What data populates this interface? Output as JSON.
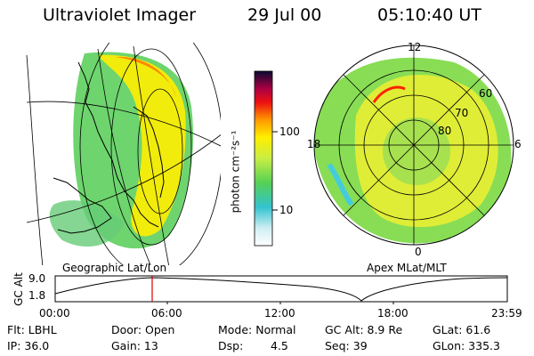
{
  "header": {
    "instrument": "Ultraviolet Imager",
    "date": "29 Jul 00",
    "time": "05:10:40 UT"
  },
  "colorbar": {
    "unit_label": "photon cm⁻²s⁻¹",
    "ticks": [
      "100",
      "10"
    ]
  },
  "left_panel": {
    "caption": "Geographic Lat/Lon"
  },
  "right_panel": {
    "caption": "Apex MLat/MLT",
    "mlt_labels": [
      "12",
      "18",
      "6",
      "0"
    ],
    "lat_labels": [
      "60",
      "70",
      "80"
    ]
  },
  "altitude_plot": {
    "ylabel": "GC Alt",
    "yticks": [
      "9.0",
      "1.8"
    ],
    "xticks": [
      "00:00",
      "06:00",
      "12:00",
      "18:00",
      "23:59"
    ],
    "marker_time": "05:10"
  },
  "info": {
    "flt": "Flt: LBHL",
    "ip": "IP: 36.0",
    "door": "Door: Open",
    "gain": "Gain: 13",
    "mode": "Mode: Normal",
    "dsp_label": "Dsp:",
    "dsp_value": "4.5",
    "gc_alt": "GC Alt: 8.9 Re",
    "seq": "Seq: 39",
    "glat": "GLat: 61.6",
    "glon": "GLon: 335.3"
  },
  "colors": {
    "marker": "#e00000",
    "aurora_bright": "#ffee00",
    "aurora_mid": "#55dd44",
    "aurora_low": "#44ccdd"
  }
}
